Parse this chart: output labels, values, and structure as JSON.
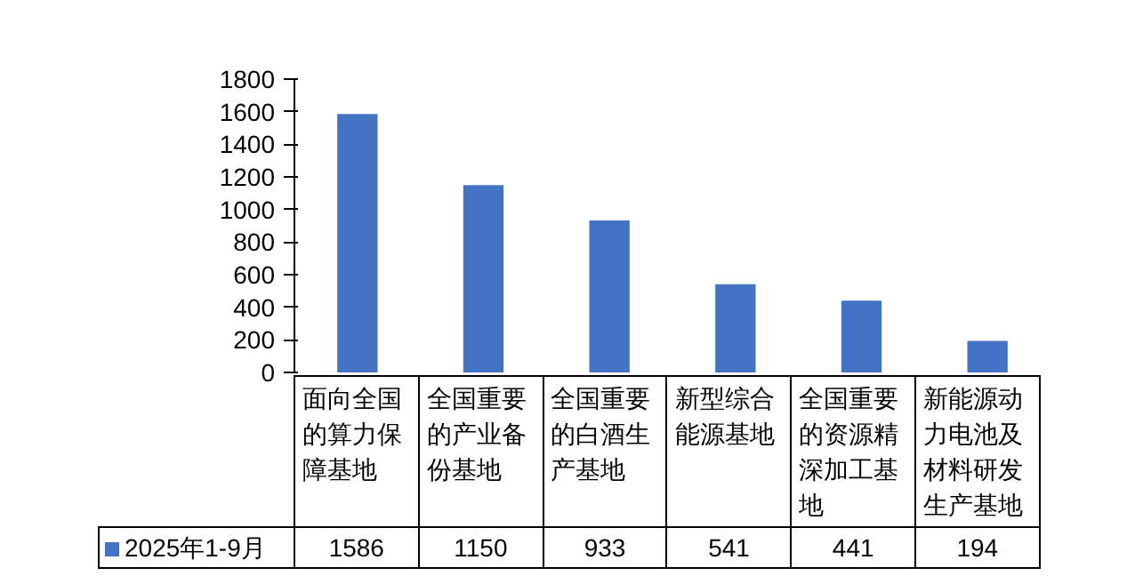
{
  "chart_data": {
    "type": "bar",
    "categories": [
      "面向全国的算力保障基地",
      "全国重要的产业备份基地",
      "全国重要的白酒生产基地",
      "新型综合能源基地",
      "全国重要的资源精深加工基地",
      "新能源动力电池及材料研发生产基地"
    ],
    "series": [
      {
        "name": "2025年1-9月",
        "color": "#4472c4",
        "values": [
          1586,
          1150,
          933,
          541,
          441,
          194
        ]
      }
    ],
    "ylim": [
      0,
      1800
    ],
    "yticks": [
      0,
      200,
      400,
      600,
      800,
      1000,
      1200,
      1400,
      1600,
      1800
    ],
    "legend": "bottom",
    "data_labels": true
  }
}
